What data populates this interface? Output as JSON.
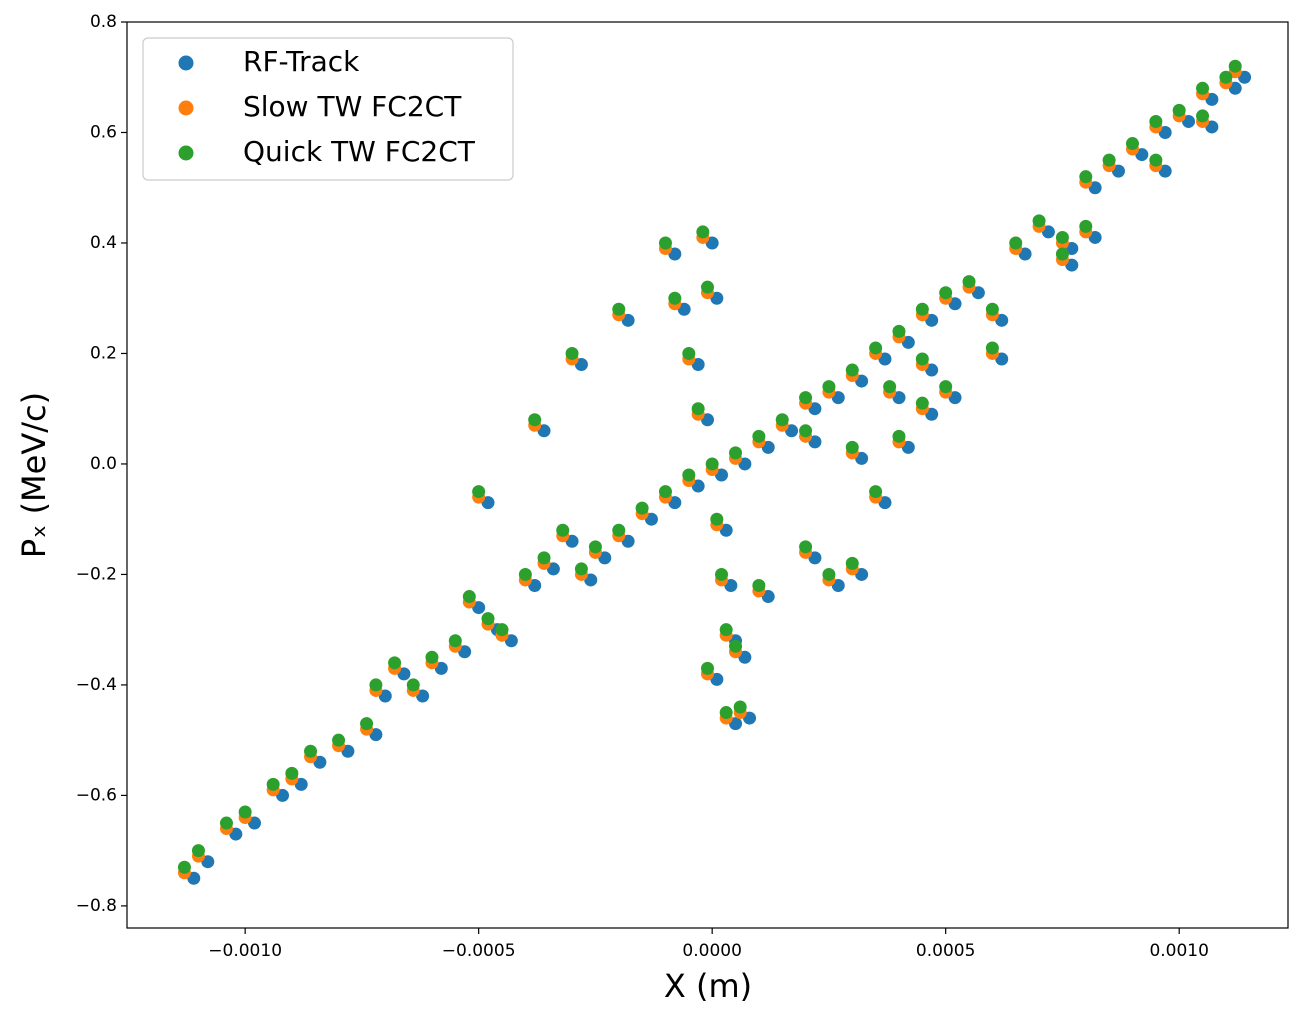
{
  "chart_data": {
    "type": "scatter",
    "x_label": "X (m)",
    "y_label": "Pₓ (MeV/c)",
    "xlim": [
      -0.001253,
      0.001233
    ],
    "ylim": [
      -0.84,
      0.8
    ],
    "xticks": [
      {
        "value": -0.001,
        "label": "−0.0010"
      },
      {
        "value": -0.0005,
        "label": "−0.0005"
      },
      {
        "value": 0,
        "label": "0.0000"
      },
      {
        "value": 0.0005,
        "label": "0.0005"
      },
      {
        "value": 0.001,
        "label": "0.0010"
      }
    ],
    "yticks": [
      {
        "value": -0.8,
        "label": "−0.8"
      },
      {
        "value": -0.6,
        "label": "−0.6"
      },
      {
        "value": -0.4,
        "label": "−0.4"
      },
      {
        "value": -0.2,
        "label": "−0.2"
      },
      {
        "value": 0,
        "label": "0.0"
      },
      0.2,
      0.4,
      0.6,
      0.8
    ],
    "grid": false,
    "legend": "upper left",
    "series": [
      {
        "name": "RF-Track",
        "color": "#1f77b4",
        "x": [
          -0.00111,
          -0.00108,
          -0.00102,
          -0.00098,
          -0.00092,
          -0.00088,
          -0.00084,
          -0.00078,
          -0.00072,
          -0.0007,
          -0.00066,
          -0.00062,
          -0.00058,
          -0.00053,
          -0.0005,
          -0.00046,
          -0.00043,
          -0.00038,
          -0.00034,
          -0.0003,
          -0.00026,
          -0.00023,
          -0.00018,
          -0.00013,
          -8e-05,
          -3e-05,
          2e-05,
          7e-05,
          0.00012,
          0.00017,
          0.00022,
          0.00027,
          0.00032,
          0.00037,
          0.00042,
          0.00047,
          0.00052,
          0.00057,
          0.00062,
          0.00067,
          0.00072,
          0.00077,
          0.00082,
          0.00087,
          0.00092,
          0.00097,
          0.00102,
          0.00107,
          0.00112,
          0.00114,
          -8e-05,
          -6e-05,
          -3e-05,
          -1e-05,
          0,
          1e-05,
          -0.00018,
          -0.00028,
          -0.00036,
          -0.00048,
          3e-05,
          4e-05,
          5e-05,
          5e-05,
          7e-05,
          8e-05,
          1e-05,
          0.00012,
          0.00022,
          0.00027,
          0.00032,
          0.00037,
          0.00032,
          0.00022,
          0.00042,
          0.00047,
          0.00052,
          0.00062,
          0.00047,
          0.0004,
          0.00077,
          0.00082,
          0.00097,
          0.00107
        ],
        "values": [
          -0.75,
          -0.72,
          -0.67,
          -0.65,
          -0.6,
          -0.58,
          -0.54,
          -0.52,
          -0.49,
          -0.42,
          -0.38,
          -0.42,
          -0.37,
          -0.34,
          -0.26,
          -0.3,
          -0.32,
          -0.22,
          -0.19,
          -0.14,
          -0.21,
          -0.17,
          -0.14,
          -0.1,
          -0.07,
          -0.04,
          -0.02,
          0,
          0.03,
          0.06,
          0.1,
          0.12,
          0.15,
          0.19,
          0.22,
          0.26,
          0.29,
          0.31,
          0.26,
          0.38,
          0.42,
          0.39,
          0.5,
          0.53,
          0.56,
          0.6,
          0.62,
          0.66,
          0.68,
          0.7,
          0.38,
          0.28,
          0.18,
          0.08,
          0.4,
          0.3,
          0.26,
          0.18,
          0.06,
          -0.07,
          -0.12,
          -0.22,
          -0.32,
          -0.47,
          -0.35,
          -0.46,
          -0.39,
          -0.24,
          -0.17,
          -0.22,
          -0.2,
          -0.07,
          0.01,
          0.04,
          0.03,
          0.09,
          0.12,
          0.19,
          0.17,
          0.12,
          0.36,
          0.41,
          0.53,
          0.61
        ]
      },
      {
        "name": "Slow TW FC2CT",
        "color": "#ff7f0e",
        "x": [
          -0.00113,
          -0.0011,
          -0.00104,
          -0.001,
          -0.00094,
          -0.0009,
          -0.00086,
          -0.0008,
          -0.00074,
          -0.00072,
          -0.00068,
          -0.00064,
          -0.0006,
          -0.00055,
          -0.00052,
          -0.00048,
          -0.00045,
          -0.0004,
          -0.00036,
          -0.00032,
          -0.00028,
          -0.00025,
          -0.0002,
          -0.00015,
          -0.0001,
          -5e-05,
          0,
          5e-05,
          0.0001,
          0.00015,
          0.0002,
          0.00025,
          0.0003,
          0.00035,
          0.0004,
          0.00045,
          0.0005,
          0.00055,
          0.0006,
          0.00065,
          0.0007,
          0.00075,
          0.0008,
          0.00085,
          0.0009,
          0.00095,
          0.001,
          0.00105,
          0.0011,
          0.00112,
          -0.0001,
          -8e-05,
          -5e-05,
          -3e-05,
          -2e-05,
          -1e-05,
          -0.0002,
          -0.0003,
          -0.00038,
          -0.0005,
          1e-05,
          2e-05,
          3e-05,
          3e-05,
          5e-05,
          6e-05,
          -1e-05,
          0.0001,
          0.0002,
          0.00025,
          0.0003,
          0.00035,
          0.0003,
          0.0002,
          0.0004,
          0.00045,
          0.0005,
          0.0006,
          0.00045,
          0.00038,
          0.00075,
          0.0008,
          0.00095,
          0.00105
        ],
        "values": [
          -0.74,
          -0.71,
          -0.66,
          -0.64,
          -0.59,
          -0.57,
          -0.53,
          -0.51,
          -0.48,
          -0.41,
          -0.37,
          -0.41,
          -0.36,
          -0.33,
          -0.25,
          -0.29,
          -0.31,
          -0.21,
          -0.18,
          -0.13,
          -0.2,
          -0.16,
          -0.13,
          -0.09,
          -0.06,
          -0.03,
          -0.01,
          0.01,
          0.04,
          0.07,
          0.11,
          0.13,
          0.16,
          0.2,
          0.23,
          0.27,
          0.3,
          0.32,
          0.27,
          0.39,
          0.43,
          0.4,
          0.51,
          0.54,
          0.57,
          0.61,
          0.63,
          0.67,
          0.69,
          0.71,
          0.39,
          0.29,
          0.19,
          0.09,
          0.41,
          0.31,
          0.27,
          0.19,
          0.07,
          -0.06,
          -0.11,
          -0.21,
          -0.31,
          -0.46,
          -0.34,
          -0.45,
          -0.38,
          -0.23,
          -0.16,
          -0.21,
          -0.19,
          -0.06,
          0.02,
          0.05,
          0.04,
          0.1,
          0.13,
          0.2,
          0.18,
          0.13,
          0.37,
          0.42,
          0.54,
          0.62
        ]
      },
      {
        "name": "Quick TW FC2CT",
        "color": "#2ca02c",
        "x": [
          -0.00113,
          -0.0011,
          -0.00104,
          -0.001,
          -0.00094,
          -0.0009,
          -0.00086,
          -0.0008,
          -0.00074,
          -0.00072,
          -0.00068,
          -0.00064,
          -0.0006,
          -0.00055,
          -0.00052,
          -0.00048,
          -0.00045,
          -0.0004,
          -0.00036,
          -0.00032,
          -0.00028,
          -0.00025,
          -0.0002,
          -0.00015,
          -0.0001,
          -5e-05,
          0,
          5e-05,
          0.0001,
          0.00015,
          0.0002,
          0.00025,
          0.0003,
          0.00035,
          0.0004,
          0.00045,
          0.0005,
          0.00055,
          0.0006,
          0.00065,
          0.0007,
          0.00075,
          0.0008,
          0.00085,
          0.0009,
          0.00095,
          0.001,
          0.00105,
          0.0011,
          0.00112,
          -0.0001,
          -8e-05,
          -5e-05,
          -3e-05,
          -2e-05,
          -1e-05,
          -0.0002,
          -0.0003,
          -0.00038,
          -0.0005,
          1e-05,
          2e-05,
          3e-05,
          3e-05,
          5e-05,
          6e-05,
          -1e-05,
          0.0001,
          0.0002,
          0.00025,
          0.0003,
          0.00035,
          0.0003,
          0.0002,
          0.0004,
          0.00045,
          0.0005,
          0.0006,
          0.00045,
          0.00038,
          0.00075,
          0.0008,
          0.00095,
          0.00105
        ],
        "values": [
          -0.73,
          -0.7,
          -0.65,
          -0.63,
          -0.58,
          -0.56,
          -0.52,
          -0.5,
          -0.47,
          -0.4,
          -0.36,
          -0.4,
          -0.35,
          -0.32,
          -0.24,
          -0.28,
          -0.3,
          -0.2,
          -0.17,
          -0.12,
          -0.19,
          -0.15,
          -0.12,
          -0.08,
          -0.05,
          -0.02,
          0,
          0.02,
          0.05,
          0.08,
          0.12,
          0.14,
          0.17,
          0.21,
          0.24,
          0.28,
          0.31,
          0.33,
          0.28,
          0.4,
          0.44,
          0.41,
          0.52,
          0.55,
          0.58,
          0.62,
          0.64,
          0.68,
          0.7,
          0.72,
          0.4,
          0.3,
          0.2,
          0.1,
          0.42,
          0.32,
          0.28,
          0.2,
          0.08,
          -0.05,
          -0.1,
          -0.2,
          -0.3,
          -0.45,
          -0.33,
          -0.44,
          -0.37,
          -0.22,
          -0.15,
          -0.2,
          -0.18,
          -0.05,
          0.03,
          0.06,
          0.05,
          0.11,
          0.14,
          0.21,
          0.19,
          0.14,
          0.38,
          0.43,
          0.55,
          0.63
        ]
      }
    ]
  }
}
